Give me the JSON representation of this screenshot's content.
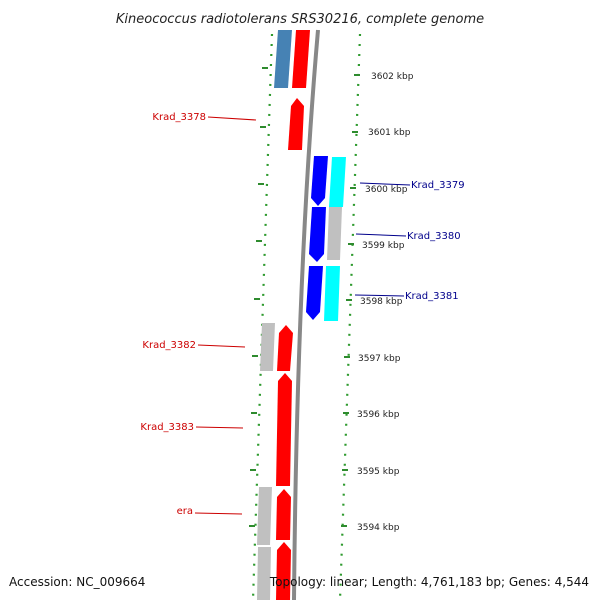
{
  "title": "Kineococcus radiotolerans SRS30216, complete genome",
  "footer": {
    "accession": "Accession: NC_009664",
    "summary": "Topology: linear; Length: 4,761,183 bp; Genes: 4,544"
  },
  "colors": {
    "forward_strand_gene": "#ff0000",
    "reverse_strand_gene": "#0000ff",
    "forward_strand_label": "#cc0000",
    "reverse_strand_label": "#00008b",
    "cog_cyan": "#00ffff",
    "cog_steelblue": "#4682b4",
    "cog_grey": "#c0c0c0",
    "backbone": "#888888",
    "tick_mark": "#2e8b2e"
  },
  "ticks": [
    {
      "label": "3602 kbp"
    },
    {
      "label": "3601 kbp"
    },
    {
      "label": "3600 kbp"
    },
    {
      "label": "3599 kbp"
    },
    {
      "label": "3598 kbp"
    },
    {
      "label": "3597 kbp"
    },
    {
      "label": "3596 kbp"
    },
    {
      "label": "3595 kbp"
    },
    {
      "label": "3594 kbp"
    }
  ],
  "gene_labels": [
    {
      "name": "Krad_3378",
      "strand": "forward"
    },
    {
      "name": "Krad_3379",
      "strand": "reverse"
    },
    {
      "name": "Krad_3380",
      "strand": "reverse"
    },
    {
      "name": "Krad_3381",
      "strand": "reverse"
    },
    {
      "name": "Krad_3382",
      "strand": "forward"
    },
    {
      "name": "Krad_3383",
      "strand": "forward"
    },
    {
      "name": "era",
      "strand": "forward"
    }
  ]
}
